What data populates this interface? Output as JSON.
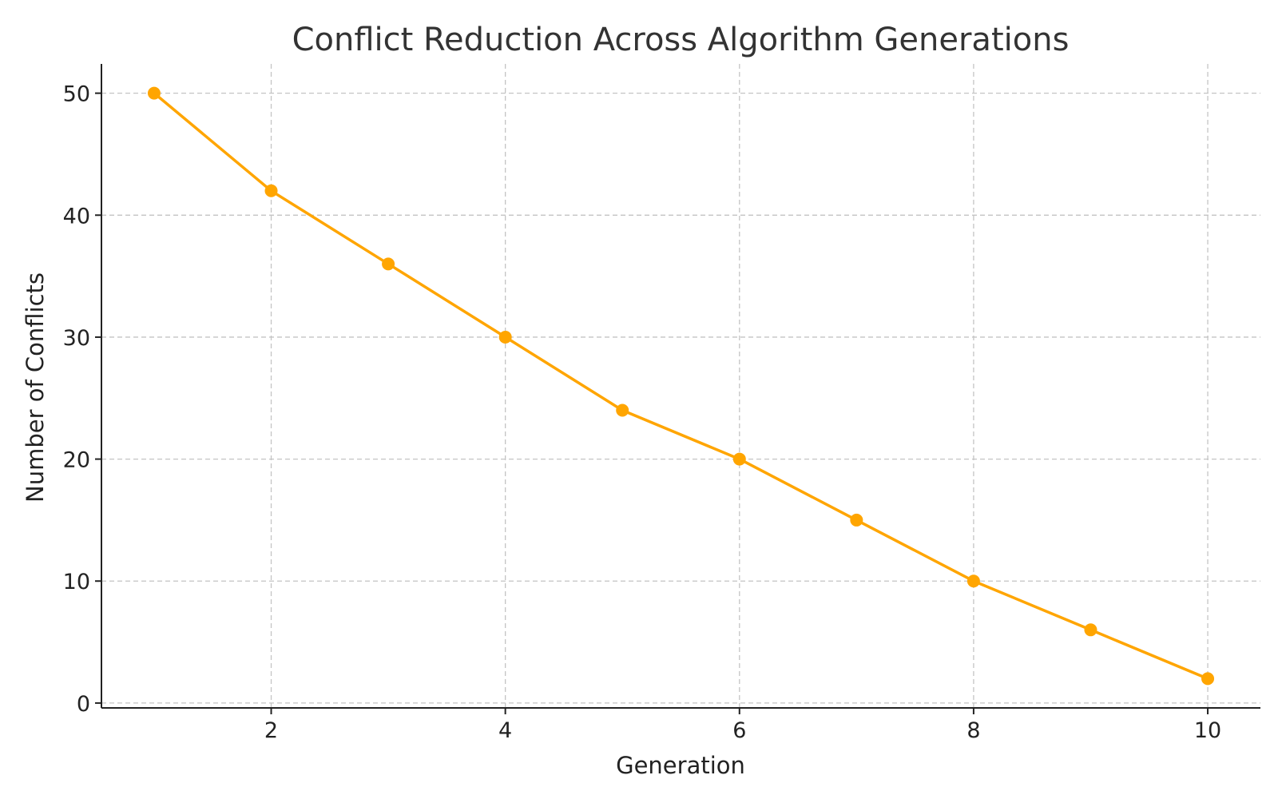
{
  "chart_data": {
    "type": "line",
    "title": "Conflict Reduction Across Algorithm Generations",
    "xlabel": "Generation",
    "ylabel": "Number of Conflicts",
    "x": [
      1,
      2,
      3,
      4,
      5,
      6,
      7,
      8,
      9,
      10
    ],
    "series": [
      {
        "values": [
          50,
          42,
          36,
          30,
          24,
          20,
          15,
          10,
          6,
          2
        ]
      }
    ],
    "xlim": [
      0.55,
      10.45
    ],
    "ylim": [
      -0.4,
      52.4
    ],
    "xticks": [
      2,
      4,
      6,
      8,
      10
    ],
    "yticks": [
      0,
      10,
      20,
      30,
      40,
      50
    ],
    "grid": true,
    "line_style": "dashed",
    "marker": "circle",
    "color": "#FFA500"
  }
}
